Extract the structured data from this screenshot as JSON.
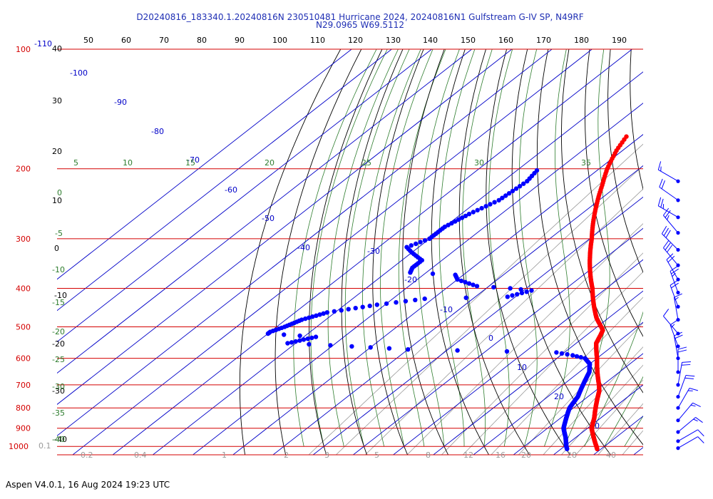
{
  "title": {
    "line1": "D20240816_183340.1.20240816N 230510481 Hurricane 2024, 20240816N1 Gulfstream G-IV SP, N49RF",
    "line2": "N29.0965 W69.5112"
  },
  "footer": "Aspen V4.0.1, 16 Aug 2024  19:23 UTC",
  "colors": {
    "isobar": "#d40000",
    "isotherm": "#0000c8",
    "dry_adiabat": "#000000",
    "moist_adiabat": "#2e7d2e",
    "mixing_ratio": "#9a9a9a",
    "temperature": "#ff0000",
    "dewpoint": "#0000ff",
    "barb": "#0000ff"
  },
  "chart_data": {
    "type": "skew-t",
    "pressure_levels": [
      "100",
      "200",
      "300",
      "400",
      "500",
      "600",
      "700",
      "800",
      "900",
      "1000"
    ],
    "isotherm_labels_top": [
      "50",
      "60",
      "70",
      "80",
      "90",
      "100",
      "110",
      "120",
      "130",
      "140",
      "150",
      "160",
      "170",
      "180",
      "190"
    ],
    "isotherm_labels_inner": [
      "-110",
      "-100",
      "-90",
      "-80",
      "-70",
      "-60",
      "-50",
      "-40",
      "-30",
      "-20",
      "-10",
      "0",
      "10",
      "20",
      "30"
    ],
    "dry_adiabat_labels": [
      "40",
      "30",
      "20",
      "10",
      "0",
      "-10",
      "-20",
      "-30",
      "-40"
    ],
    "moist_adiabat_labels_top": [
      "5",
      "10",
      "15",
      "20",
      "25",
      "30",
      "35"
    ],
    "moist_adiabat_labels_left": [
      "0",
      "-5",
      "-10",
      "-15",
      "-20",
      "-25",
      "-30",
      "-35",
      "-40"
    ],
    "mixing_ratio_labels": [
      "0.1",
      "0.2",
      "0.4",
      "1",
      "2",
      "3",
      "5",
      "8",
      "12",
      "16",
      "20",
      "28",
      "40"
    ],
    "temperature_profile": [
      {
        "p": 166,
        "t": -63.5
      },
      {
        "p": 180,
        "t": -61.5
      },
      {
        "p": 200,
        "t": -58
      },
      {
        "p": 220,
        "t": -54
      },
      {
        "p": 250,
        "t": -48.5
      },
      {
        "p": 275,
        "t": -44
      },
      {
        "p": 300,
        "t": -39.5
      },
      {
        "p": 325,
        "t": -35.5
      },
      {
        "p": 350,
        "t": -31.5
      },
      {
        "p": 375,
        "t": -27.5
      },
      {
        "p": 400,
        "t": -23.5
      },
      {
        "p": 425,
        "t": -20
      },
      {
        "p": 450,
        "t": -16.5
      },
      {
        "p": 475,
        "t": -13
      },
      {
        "p": 500,
        "t": -9
      },
      {
        "p": 510,
        "t": -7.5
      },
      {
        "p": 525,
        "t": -6.5
      },
      {
        "p": 550,
        "t": -5
      },
      {
        "p": 575,
        "t": -2.5
      },
      {
        "p": 600,
        "t": 0
      },
      {
        "p": 650,
        "t": 4.5
      },
      {
        "p": 700,
        "t": 9
      },
      {
        "p": 725,
        "t": 11
      },
      {
        "p": 750,
        "t": 12.5
      },
      {
        "p": 800,
        "t": 15.5
      },
      {
        "p": 850,
        "t": 18.5
      },
      {
        "p": 900,
        "t": 21
      },
      {
        "p": 950,
        "t": 24.5
      },
      {
        "p": 1000,
        "t": 28
      },
      {
        "p": 1015,
        "t": 29
      }
    ],
    "dewpoint_profile": [
      {
        "p": 202,
        "t": -75
      },
      {
        "p": 215,
        "t": -74
      },
      {
        "p": 240,
        "t": -75
      },
      {
        "p": 260,
        "t": -78
      },
      {
        "p": 280,
        "t": -80
      },
      {
        "p": 300,
        "t": -80
      },
      {
        "p": 315,
        "t": -83
      },
      {
        "p": 325,
        "t": -80
      },
      {
        "p": 340,
        "t": -75
      },
      {
        "p": 355,
        "t": -75
      },
      {
        "p": 365,
        "t": -74
      },
      {
        "p": 370,
        "t": -62
      },
      {
        "p": 380,
        "t": -60
      },
      {
        "p": 395,
        "t": -53
      },
      {
        "p": 400,
        "t": -44
      },
      {
        "p": 405,
        "t": -38
      },
      {
        "p": 420,
        "t": -42
      },
      {
        "p": 425,
        "t": -62
      },
      {
        "p": 440,
        "t": -72
      },
      {
        "p": 460,
        "t": -82
      },
      {
        "p": 480,
        "t": -86
      },
      {
        "p": 500,
        "t": -88
      },
      {
        "p": 515,
        "t": -90
      },
      {
        "p": 520,
        "t": -90
      },
      {
        "p": 530,
        "t": -77
      },
      {
        "p": 550,
        "t": -82
      },
      {
        "p": 560,
        "t": -65
      },
      {
        "p": 570,
        "t": -50
      },
      {
        "p": 580,
        "t": -12
      },
      {
        "p": 590,
        "t": -7
      },
      {
        "p": 600,
        "t": -3
      },
      {
        "p": 620,
        "t": 0
      },
      {
        "p": 650,
        "t": 2.5
      },
      {
        "p": 700,
        "t": 5
      },
      {
        "p": 750,
        "t": 7.5
      },
      {
        "p": 800,
        "t": 9
      },
      {
        "p": 850,
        "t": 11.5
      },
      {
        "p": 900,
        "t": 14
      },
      {
        "p": 950,
        "t": 17.5
      },
      {
        "p": 1000,
        "t": 20.5
      },
      {
        "p": 1015,
        "t": 21.5
      }
    ],
    "wind_profile": [
      {
        "p": 215,
        "dir": 300,
        "kt": 15
      },
      {
        "p": 240,
        "dir": 305,
        "kt": 20
      },
      {
        "p": 265,
        "dir": 300,
        "kt": 25
      },
      {
        "p": 290,
        "dir": 320,
        "kt": 25
      },
      {
        "p": 320,
        "dir": 315,
        "kt": 30
      },
      {
        "p": 350,
        "dir": 320,
        "kt": 30
      },
      {
        "p": 380,
        "dir": 330,
        "kt": 20
      },
      {
        "p": 410,
        "dir": 340,
        "kt": 25
      },
      {
        "p": 445,
        "dir": 340,
        "kt": 20
      },
      {
        "p": 480,
        "dir": 350,
        "kt": 15
      },
      {
        "p": 520,
        "dir": 320,
        "kt": 10
      },
      {
        "p": 560,
        "dir": 340,
        "kt": 15
      },
      {
        "p": 600,
        "dir": 350,
        "kt": 20
      },
      {
        "p": 650,
        "dir": 0,
        "kt": 20
      },
      {
        "p": 700,
        "dir": 10,
        "kt": 20
      },
      {
        "p": 750,
        "dir": 20,
        "kt": 20
      },
      {
        "p": 800,
        "dir": 30,
        "kt": 15
      },
      {
        "p": 860,
        "dir": 40,
        "kt": 15
      },
      {
        "p": 920,
        "dir": 50,
        "kt": 15
      },
      {
        "p": 970,
        "dir": 60,
        "kt": 10
      },
      {
        "p": 1010,
        "dir": 60,
        "kt": 10
      }
    ]
  }
}
